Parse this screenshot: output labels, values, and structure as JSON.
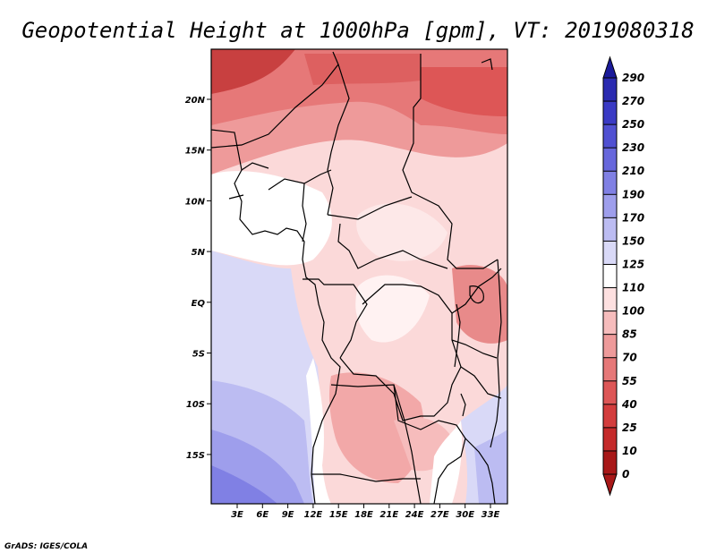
{
  "title": "Geopotential Height at 1000hPa [gpm], VT: 2019080318",
  "credit": "GrADS: IGES/COLA",
  "map": {
    "lon_labels": [
      "3E",
      "6E",
      "9E",
      "12E",
      "15E",
      "18E",
      "21E",
      "24E",
      "27E",
      "30E",
      "33E"
    ],
    "lat_labels": [
      "20N",
      "15N",
      "10N",
      "5N",
      "EQ",
      "5S",
      "10S",
      "15S"
    ]
  },
  "colorbar": {
    "levels": [
      "290",
      "270",
      "250",
      "230",
      "210",
      "190",
      "170",
      "150",
      "125",
      "110",
      "100",
      "85",
      "70",
      "55",
      "40",
      "25",
      "10",
      "0"
    ],
    "colors": [
      "#1a1a9a",
      "#2a2ab0",
      "#3a3ac4",
      "#5050d2",
      "#6767dc",
      "#8080e4",
      "#9e9eec",
      "#bcbcf2",
      "#d9d9f7",
      "#ffffff",
      "#fde0e0",
      "#f6bcbc",
      "#ee9a9a",
      "#e67878",
      "#dd5656",
      "#d33d3d",
      "#c42a2a",
      "#a81818"
    ]
  }
}
